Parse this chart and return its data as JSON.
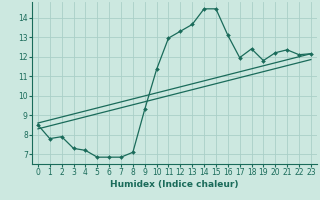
{
  "xlabel": "Humidex (Indice chaleur)",
  "bg_color": "#cce8e0",
  "grid_color": "#aacfc8",
  "line_color": "#1a6b5a",
  "xlim": [
    -0.5,
    23.5
  ],
  "ylim": [
    6.5,
    14.8
  ],
  "xticks": [
    0,
    1,
    2,
    3,
    4,
    5,
    6,
    7,
    8,
    9,
    10,
    11,
    12,
    13,
    14,
    15,
    16,
    17,
    18,
    19,
    20,
    21,
    22,
    23
  ],
  "yticks": [
    7,
    8,
    9,
    10,
    11,
    12,
    13,
    14
  ],
  "curve1_x": [
    0,
    1,
    2,
    3,
    4,
    5,
    6,
    7,
    8,
    9,
    10,
    11,
    12,
    13,
    14,
    15,
    16,
    17,
    18,
    19,
    20,
    21,
    22,
    23
  ],
  "curve1_y": [
    8.5,
    7.8,
    7.9,
    7.3,
    7.2,
    6.85,
    6.85,
    6.85,
    7.1,
    9.3,
    11.35,
    12.95,
    13.3,
    13.65,
    14.45,
    14.45,
    13.1,
    11.95,
    12.4,
    11.8,
    12.2,
    12.35,
    12.1,
    12.15
  ],
  "line2_x": [
    0,
    23
  ],
  "line2_y": [
    8.6,
    12.15
  ],
  "line3_x": [
    0,
    23
  ],
  "line3_y": [
    8.3,
    11.85
  ],
  "xlabel_fontsize": 6.5,
  "tick_fontsize": 5.5
}
